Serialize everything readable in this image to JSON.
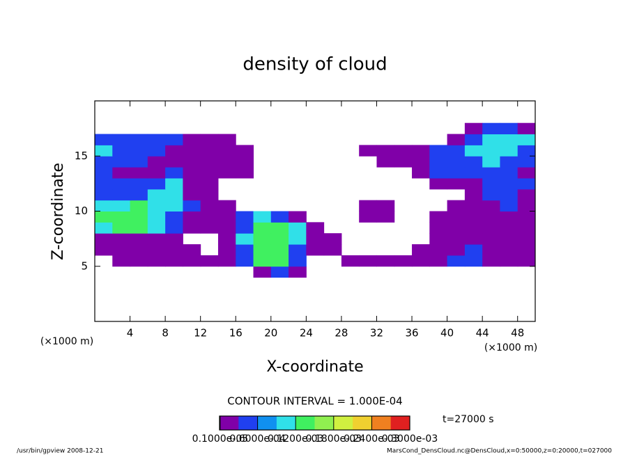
{
  "chart_data": {
    "type": "heatmap",
    "title": "density of cloud",
    "xlabel": "X-coordinate",
    "ylabel": "Z-coordinate",
    "xunit": "(×1000 m)",
    "yunit": "(×1000 m)",
    "xlim": [
      0,
      50
    ],
    "ylim": [
      0,
      20
    ],
    "xticks": [
      4,
      8,
      12,
      16,
      20,
      24,
      28,
      32,
      36,
      40,
      44,
      48
    ],
    "yticks": [
      5,
      10,
      15
    ],
    "x": [
      1,
      3,
      5,
      7,
      9,
      11,
      13,
      15,
      17,
      19,
      21,
      23,
      25,
      27,
      29,
      31,
      33,
      35,
      37,
      39,
      41,
      43,
      45,
      47,
      49
    ],
    "y": [
      4.5,
      5.5,
      6.5,
      7.5,
      8.5,
      9.5,
      10.5,
      11.5,
      12.5,
      13.5,
      14.5,
      15.5,
      16.5,
      17.5
    ],
    "values": [
      [
        null,
        null,
        null,
        null,
        null,
        null,
        null,
        null,
        null,
        2e-05,
        5e-05,
        2e-05,
        null,
        null,
        null,
        null,
        null,
        null,
        null,
        null,
        null,
        null,
        null,
        null,
        null
      ],
      [
        null,
        2e-05,
        2e-05,
        2e-05,
        2e-05,
        2e-05,
        2e-05,
        2e-05,
        5e-05,
        0.00013,
        0.00013,
        5e-05,
        null,
        null,
        2e-05,
        2e-05,
        2e-05,
        2e-05,
        2e-05,
        2e-05,
        5e-05,
        5e-05,
        2e-05,
        2e-05,
        2e-05
      ],
      [
        2e-05,
        2e-05,
        2e-05,
        2e-05,
        2e-05,
        2e-05,
        null,
        2e-05,
        5e-05,
        0.00013,
        0.00013,
        5e-05,
        2e-05,
        2e-05,
        null,
        null,
        null,
        null,
        2e-05,
        2e-05,
        2e-05,
        5e-05,
        2e-05,
        2e-05,
        2e-05
      ],
      [
        2e-05,
        2e-05,
        2e-05,
        2e-05,
        2e-05,
        null,
        null,
        2e-05,
        9e-05,
        0.00013,
        0.00013,
        9e-05,
        2e-05,
        2e-05,
        null,
        null,
        null,
        null,
        null,
        2e-05,
        2e-05,
        2e-05,
        2e-05,
        2e-05,
        2e-05
      ],
      [
        9e-05,
        0.00013,
        0.00013,
        9e-05,
        5e-05,
        2e-05,
        2e-05,
        2e-05,
        5e-05,
        0.00013,
        0.00013,
        9e-05,
        2e-05,
        null,
        null,
        null,
        null,
        null,
        null,
        2e-05,
        2e-05,
        2e-05,
        2e-05,
        2e-05,
        2e-05
      ],
      [
        0.00013,
        0.00013,
        0.00013,
        9e-05,
        5e-05,
        2e-05,
        2e-05,
        2e-05,
        5e-05,
        9e-05,
        5e-05,
        2e-05,
        null,
        null,
        null,
        2e-05,
        2e-05,
        null,
        null,
        2e-05,
        2e-05,
        2e-05,
        2e-05,
        2e-05,
        2e-05
      ],
      [
        9e-05,
        9e-05,
        0.00013,
        9e-05,
        9e-05,
        5e-05,
        2e-05,
        2e-05,
        null,
        null,
        null,
        null,
        null,
        null,
        null,
        2e-05,
        2e-05,
        null,
        null,
        null,
        2e-05,
        2e-05,
        2e-05,
        5e-05,
        2e-05
      ],
      [
        5e-05,
        5e-05,
        5e-05,
        9e-05,
        9e-05,
        2e-05,
        2e-05,
        null,
        null,
        null,
        null,
        null,
        null,
        null,
        null,
        null,
        null,
        null,
        null,
        null,
        null,
        2e-05,
        5e-05,
        5e-05,
        2e-05
      ],
      [
        5e-05,
        5e-05,
        5e-05,
        5e-05,
        9e-05,
        2e-05,
        2e-05,
        null,
        null,
        null,
        null,
        null,
        null,
        null,
        null,
        null,
        null,
        null,
        null,
        2e-05,
        2e-05,
        2e-05,
        5e-05,
        5e-05,
        5e-05
      ],
      [
        5e-05,
        2e-05,
        2e-05,
        2e-05,
        5e-05,
        2e-05,
        2e-05,
        2e-05,
        2e-05,
        null,
        null,
        null,
        null,
        null,
        null,
        null,
        null,
        null,
        2e-05,
        5e-05,
        5e-05,
        5e-05,
        5e-05,
        5e-05,
        2e-05
      ],
      [
        5e-05,
        5e-05,
        5e-05,
        2e-05,
        2e-05,
        2e-05,
        2e-05,
        2e-05,
        2e-05,
        null,
        null,
        null,
        null,
        null,
        null,
        null,
        2e-05,
        2e-05,
        2e-05,
        5e-05,
        5e-05,
        5e-05,
        9e-05,
        5e-05,
        5e-05
      ],
      [
        9e-05,
        5e-05,
        5e-05,
        5e-05,
        2e-05,
        2e-05,
        2e-05,
        2e-05,
        2e-05,
        null,
        null,
        null,
        null,
        null,
        null,
        2e-05,
        2e-05,
        2e-05,
        2e-05,
        5e-05,
        5e-05,
        9e-05,
        9e-05,
        9e-05,
        5e-05
      ],
      [
        5e-05,
        5e-05,
        5e-05,
        5e-05,
        5e-05,
        2e-05,
        2e-05,
        2e-05,
        null,
        null,
        null,
        null,
        null,
        null,
        null,
        null,
        null,
        null,
        null,
        null,
        2e-05,
        5e-05,
        9e-05,
        9e-05,
        9e-05
      ],
      [
        null,
        null,
        null,
        null,
        null,
        null,
        null,
        null,
        null,
        null,
        null,
        null,
        null,
        null,
        null,
        null,
        null,
        null,
        null,
        null,
        null,
        2e-05,
        5e-05,
        5e-05,
        2e-05
      ]
    ],
    "clim": [
      0,
      0.0003
    ],
    "colors": [
      "#8000a8",
      "#2040f0",
      "#1090f0",
      "#30e0e8",
      "#40f060",
      "#90f050",
      "#d0f040",
      "#f0d030",
      "#f08020",
      "#e02020"
    ],
    "colorbar_ticks": [
      {
        "value": 1e-06,
        "label": "0.1000e-05"
      },
      {
        "value": 6e-05,
        "label": "0.6000e-04"
      },
      {
        "value": 0.00012,
        "label": "0.1200e-03"
      },
      {
        "value": 0.00018,
        "label": "0.1800e-03"
      },
      {
        "value": 0.00024,
        "label": "0.2400e-03"
      },
      {
        "value": 0.0003,
        "label": "0.3000e-03"
      }
    ],
    "contour_note": "CONTOUR INTERVAL = 1.000E-04",
    "time_label": "t=27000 s",
    "footer_left": "/usr/bin/gpview   2008-12-21",
    "footer_right": "MarsCond_DensCloud.nc@DensCloud,x=0:50000,z=0:20000,t=027000"
  }
}
